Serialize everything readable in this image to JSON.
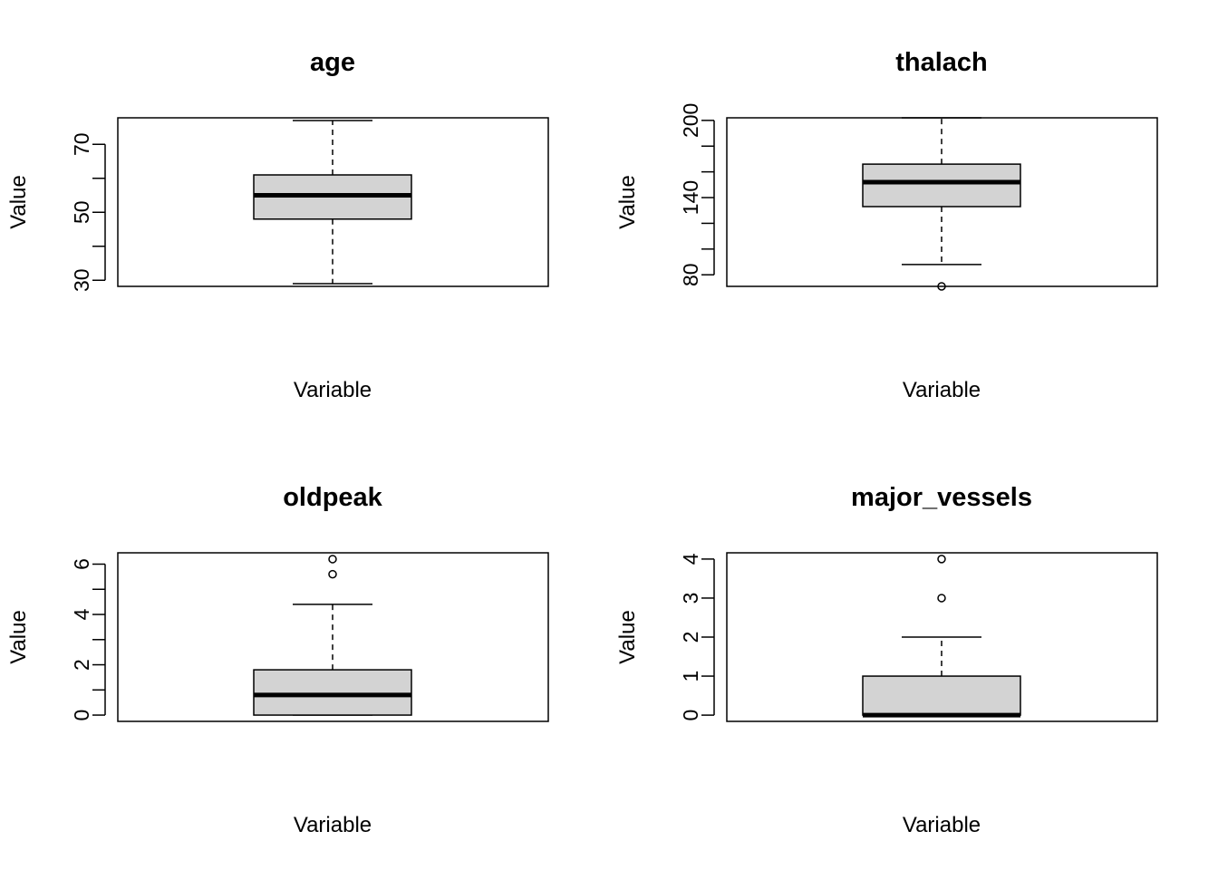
{
  "chart_data": [
    {
      "type": "boxplot",
      "title": "age",
      "xlabel": "Variable",
      "ylabel": "Value",
      "ylim": [
        28.2,
        77.8
      ],
      "yticks": [
        30,
        40,
        50,
        60,
        70
      ],
      "ytick_labels": [
        "30",
        "",
        "50",
        "",
        "70"
      ],
      "box": {
        "whisker_low": 29,
        "q1": 48,
        "median": 55,
        "q3": 61,
        "whisker_high": 77
      },
      "outliers": []
    },
    {
      "type": "boxplot",
      "title": "thalach",
      "xlabel": "Variable",
      "ylabel": "Value",
      "ylim": [
        71,
        202
      ],
      "yticks": [
        80,
        100,
        120,
        140,
        160,
        180,
        200
      ],
      "ytick_labels": [
        "80",
        "",
        "",
        "140",
        "",
        "",
        "200"
      ],
      "box": {
        "whisker_low": 88,
        "q1": 133,
        "median": 152,
        "q3": 166,
        "whisker_high": 202
      },
      "outliers": [
        71
      ]
    },
    {
      "type": "boxplot",
      "title": "oldpeak",
      "xlabel": "Variable",
      "ylabel": "Value",
      "ylim": [
        -0.25,
        6.45
      ],
      "yticks": [
        0,
        1,
        2,
        3,
        4,
        5,
        6
      ],
      "ytick_labels": [
        "0",
        "",
        "2",
        "",
        "4",
        "",
        "6"
      ],
      "box": {
        "whisker_low": 0,
        "q1": 0,
        "median": 0.8,
        "q3": 1.8,
        "whisker_high": 4.4
      },
      "outliers": [
        5.6,
        6.2
      ]
    },
    {
      "type": "boxplot",
      "title": "major_vessels",
      "xlabel": "Variable",
      "ylabel": "Value",
      "ylim": [
        -0.16,
        4.16
      ],
      "yticks": [
        0,
        1,
        2,
        3,
        4
      ],
      "ytick_labels": [
        "0",
        "1",
        "2",
        "3",
        "4"
      ],
      "box": {
        "whisker_low": 0,
        "q1": 0,
        "median": 0,
        "q3": 1,
        "whisker_high": 2
      },
      "outliers": [
        3,
        4
      ]
    }
  ],
  "style": {
    "box_fill": "#d3d3d3",
    "stroke": "#000000",
    "background": "#ffffff"
  }
}
